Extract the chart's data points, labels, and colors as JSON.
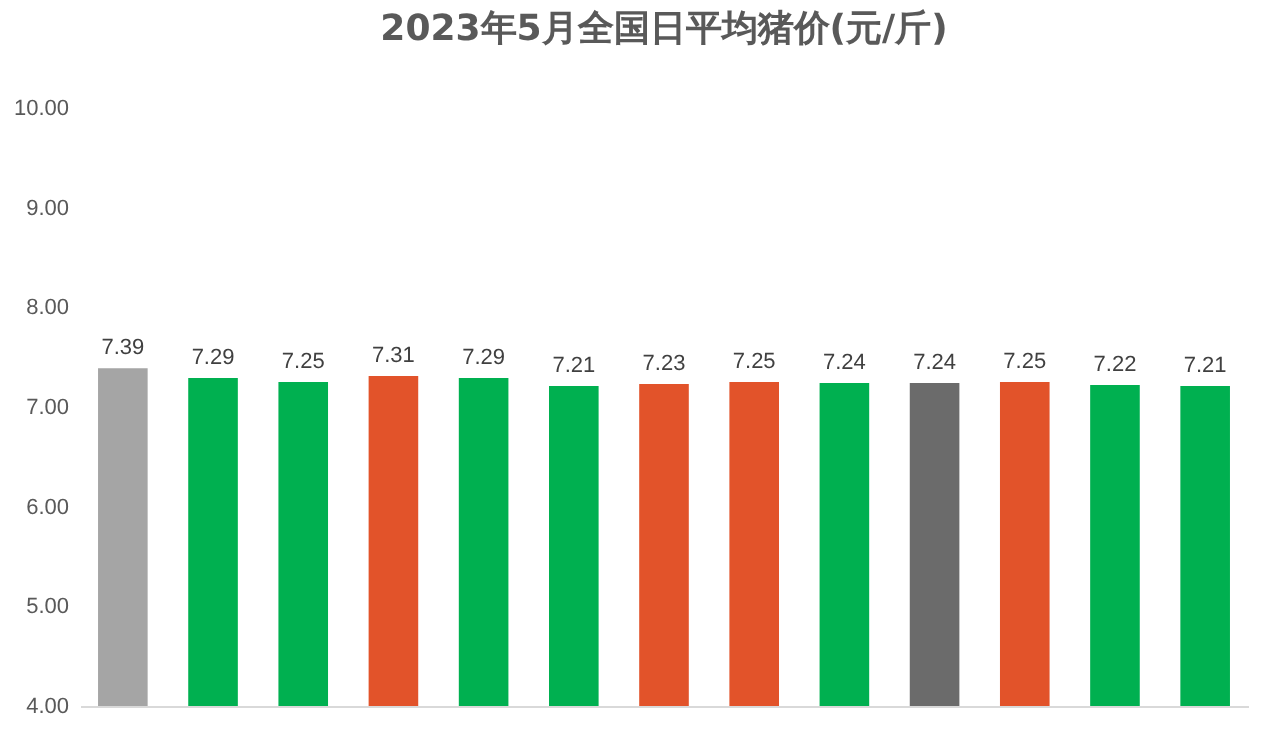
{
  "chart_data": {
    "type": "bar",
    "title": "2023年5月全国日平均猪价(元/斤)",
    "categories": [
      null,
      null,
      null,
      null,
      null,
      null,
      null,
      null,
      null,
      null,
      null,
      null,
      null
    ],
    "values": [
      7.39,
      7.29,
      7.25,
      7.31,
      7.29,
      7.21,
      7.23,
      7.25,
      7.24,
      7.24,
      7.25,
      7.22,
      7.21
    ],
    "colors": [
      "#a5a5a5",
      "#00b050",
      "#00b050",
      "#e2532a",
      "#00b050",
      "#00b050",
      "#e2532a",
      "#e2532a",
      "#00b050",
      "#6b6b6b",
      "#e2532a",
      "#00b050",
      "#00b050"
    ],
    "ylim": [
      4,
      10
    ],
    "yticks": [
      {
        "value": 4,
        "label": "4.00"
      },
      {
        "value": 5,
        "label": "5.00"
      },
      {
        "value": 6,
        "label": "6.00"
      },
      {
        "value": 7,
        "label": "7.00"
      },
      {
        "value": 8,
        "label": "8.00"
      },
      {
        "value": 9,
        "label": "9.00"
      },
      {
        "value": 10,
        "label": "10.00"
      }
    ],
    "tick_labels": "y",
    "data_labels": true
  }
}
